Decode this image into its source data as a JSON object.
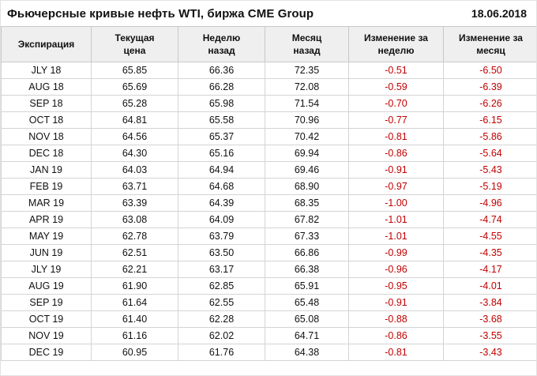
{
  "header": {
    "title": "Фьючерсные кривые нефть WTI, биржа CME Group",
    "date": "18.06.2018"
  },
  "colors": {
    "negative_value": "#c00000",
    "header_background": "#efefef",
    "grid_border": "#d4d4d4"
  },
  "chart_data": {
    "type": "table",
    "title": "Фьючерсные кривые нефть WTI, биржа CME Group",
    "date": "18.06.2018",
    "columns": [
      "Экспирация",
      "Текущая\nцена",
      "Неделю\nназад",
      "Месяц\nназад",
      "Изменение за\nнеделю",
      "Изменение за\nмесяц"
    ],
    "rows": [
      [
        "JLY 18",
        "65.85",
        "66.36",
        "72.35",
        "-0.51",
        "-6.50"
      ],
      [
        "AUG 18",
        "65.69",
        "66.28",
        "72.08",
        "-0.59",
        "-6.39"
      ],
      [
        "SEP 18",
        "65.28",
        "65.98",
        "71.54",
        "-0.70",
        "-6.26"
      ],
      [
        "OCT 18",
        "64.81",
        "65.58",
        "70.96",
        "-0.77",
        "-6.15"
      ],
      [
        "NOV 18",
        "64.56",
        "65.37",
        "70.42",
        "-0.81",
        "-5.86"
      ],
      [
        "DEC 18",
        "64.30",
        "65.16",
        "69.94",
        "-0.86",
        "-5.64"
      ],
      [
        "JAN 19",
        "64.03",
        "64.94",
        "69.46",
        "-0.91",
        "-5.43"
      ],
      [
        "FEB 19",
        "63.71",
        "64.68",
        "68.90",
        "-0.97",
        "-5.19"
      ],
      [
        "MAR 19",
        "63.39",
        "64.39",
        "68.35",
        "-1.00",
        "-4.96"
      ],
      [
        "APR 19",
        "63.08",
        "64.09",
        "67.82",
        "-1.01",
        "-4.74"
      ],
      [
        "MAY 19",
        "62.78",
        "63.79",
        "67.33",
        "-1.01",
        "-4.55"
      ],
      [
        "JUN 19",
        "62.51",
        "63.50",
        "66.86",
        "-0.99",
        "-4.35"
      ],
      [
        "JLY 19",
        "62.21",
        "63.17",
        "66.38",
        "-0.96",
        "-4.17"
      ],
      [
        "AUG 19",
        "61.90",
        "62.85",
        "65.91",
        "-0.95",
        "-4.01"
      ],
      [
        "SEP 19",
        "61.64",
        "62.55",
        "65.48",
        "-0.91",
        "-3.84"
      ],
      [
        "OCT 19",
        "61.40",
        "62.28",
        "65.08",
        "-0.88",
        "-3.68"
      ],
      [
        "NOV 19",
        "61.16",
        "62.02",
        "64.71",
        "-0.86",
        "-3.55"
      ],
      [
        "DEC 19",
        "60.95",
        "61.76",
        "64.38",
        "-0.81",
        "-3.43"
      ]
    ],
    "negative_value_columns": [
      4,
      5
    ],
    "legend_position": "none",
    "grid": true
  }
}
